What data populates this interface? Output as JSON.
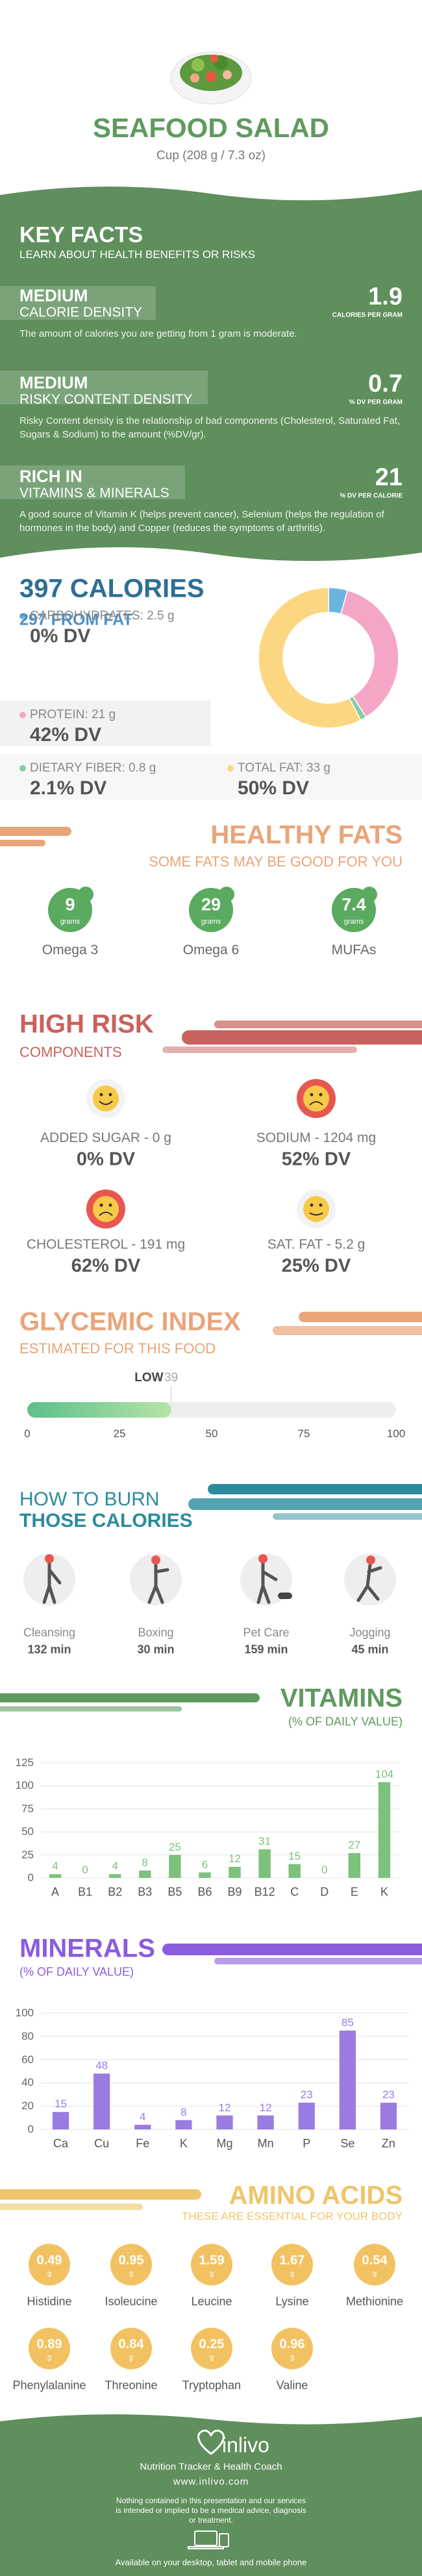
{
  "header": {
    "title": "SEAFOOD SALAD",
    "subtitle": "Cup (208 g / 7.3 oz)"
  },
  "key_facts": {
    "title": "KEY FACTS",
    "subtitle": "LEARN ABOUT HEALTH BENEFITS OR RISKS",
    "items": [
      {
        "level": "MEDIUM",
        "name": "CALORIE DENSITY",
        "value": "1.9",
        "unit": "CALORIES PER GRAM",
        "description": "The amount of calories you are getting from 1 gram is moderate."
      },
      {
        "level": "MEDIUM",
        "name": "RISKY CONTENT DENSITY",
        "value": "0.7",
        "unit": "% DV PER GRAM",
        "description": "Risky Content density is the relationship of bad components (Cholesterol, Saturated Fat, Sugars & Sodium) to the amount (%DV/gr)."
      },
      {
        "level": "RICH  IN",
        "name": "VITAMINS & MINERALS",
        "value": "21",
        "unit": "% DV PER CALORIE",
        "description": "A good source of Vitamin K (helps prevent cancer), Selenium (helps the regulation of hormones in the body) and Copper (reduces the symptoms of arthritis)."
      }
    ]
  },
  "calories": {
    "title": "397 CALORIES",
    "from_fat": "297 FROM FAT",
    "nutrients": [
      {
        "name": "CARBOHYDRATES:",
        "amount": 2.5,
        "unit": "g",
        "dv": "0% DV",
        "color": "#6cb4e0"
      },
      {
        "name": "PROTEIN:",
        "amount": 21,
        "unit": "g",
        "dv": "42% DV",
        "color": "#f5a6c6"
      },
      {
        "name": "DIETARY FIBER:",
        "amount": 0.8,
        "unit": "g",
        "dv": "2.1% DV",
        "color": "#86cca4"
      },
      {
        "name": "TOTAL FAT:",
        "amount": 33,
        "unit": "g",
        "dv": "50% DV",
        "color": "#fcd781"
      }
    ]
  },
  "healthy_fats": {
    "title": "HEALTHY FATS",
    "subtitle": "SOME FATS MAY BE GOOD FOR YOU",
    "items": [
      {
        "value": "9",
        "unit": "grams",
        "name": "Omega 3"
      },
      {
        "value": "29",
        "unit": "grams",
        "name": "Omega 6"
      },
      {
        "value": "7.4",
        "unit": "grams",
        "name": "MUFAs"
      }
    ]
  },
  "high_risk": {
    "title": "HIGH RISK",
    "subtitle": "COMPONENTS",
    "items": [
      {
        "label": "ADDED SUGAR - 0 g",
        "dv": "0% DV"
      },
      {
        "label": "SODIUM - 1204 mg",
        "dv": "52% DV"
      },
      {
        "label": "CHOLESTEROL - 191 mg",
        "dv": "62% DV"
      },
      {
        "label": "SAT. FAT - 5.2 g",
        "dv": "25% DV"
      }
    ]
  },
  "glycemic_index": {
    "title": "GLYCEMIC INDEX",
    "subtitle": "ESTIMATED FOR THIS FOOD",
    "level": "LOW",
    "value": 39,
    "xlim": [
      0,
      100
    ],
    "xticks": [
      0,
      25,
      50,
      75,
      100
    ]
  },
  "burn": {
    "title": "HOW TO BURN",
    "subtitle": "THOSE CALORIES",
    "items": [
      {
        "name": "Cleansing",
        "time": "132 min"
      },
      {
        "name": "Boxing",
        "time": "30 min"
      },
      {
        "name": "Pet Care",
        "time": "159 min"
      },
      {
        "name": "Jogging",
        "time": "45 min"
      }
    ]
  },
  "vitamins": {
    "type": "bar",
    "title": "VITAMINS",
    "subtitle": "(% OF DAILY VALUE)",
    "color": "#7cc17c",
    "categories": [
      "A",
      "B1",
      "B2",
      "B3",
      "B5",
      "B6",
      "B9",
      "B12",
      "C",
      "D",
      "E",
      "K"
    ],
    "values": [
      4,
      0,
      4,
      8,
      25,
      6,
      12,
      31,
      15,
      0,
      27,
      104
    ],
    "ylim": [
      0,
      125
    ],
    "yticks": [
      0,
      25,
      50,
      75,
      100,
      125
    ],
    "grid": true
  },
  "minerals": {
    "type": "bar",
    "title": "MINERALS",
    "subtitle": "(% OF DAILY VALUE)",
    "color": "#9a7be2",
    "categories": [
      "Ca",
      "Cu",
      "Fe",
      "K",
      "Mg",
      "Mn",
      "P",
      "Se",
      "Zn"
    ],
    "values": [
      15,
      48,
      4,
      8,
      12,
      12,
      23,
      85,
      23
    ],
    "ylim": [
      0,
      100
    ],
    "yticks": [
      0,
      20,
      40,
      60,
      80,
      100
    ],
    "grid": true
  },
  "amino_acids": {
    "title": "AMINO ACIDS",
    "subtitle": "THESE ARE ESSENTIAL FOR YOUR BODY",
    "items": [
      {
        "value": "0.49",
        "unit": "g",
        "name": "Histidine"
      },
      {
        "value": "0.95",
        "unit": "g",
        "name": "Isoleucine"
      },
      {
        "value": "1.59",
        "unit": "g",
        "name": "Leucine"
      },
      {
        "value": "1.67",
        "unit": "g",
        "name": "Lysine"
      },
      {
        "value": "0.54",
        "unit": "g",
        "name": "Methionine"
      },
      {
        "value": "0.89",
        "unit": "g",
        "name": "Phenylalanine"
      },
      {
        "value": "0.84",
        "unit": "g",
        "name": "Threonine"
      },
      {
        "value": "0.25",
        "unit": "g",
        "name": "Tryptophan"
      },
      {
        "value": "0.96",
        "unit": "g",
        "name": "Valine"
      }
    ]
  },
  "footer": {
    "brand": "inlivo",
    "tagline": "Nutrition Tracker & Health Coach",
    "url": "www.inlivo.com",
    "disclaimer": "Nothing contained in this presentation and our services is intended or implied to be a medical advice, diagnosis or treatment.",
    "available": "Available on your desktop, tablet and mobile phone"
  }
}
